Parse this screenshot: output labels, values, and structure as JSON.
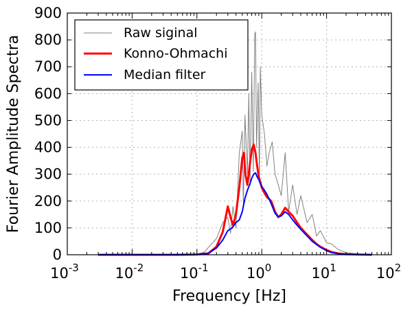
{
  "chart_data": {
    "type": "line",
    "xlabel": "Frequency [Hz]",
    "ylabel": "Fourier Amplitude Spectra",
    "x_scale": "log",
    "xlim": [
      0.001,
      100
    ],
    "ylim": [
      0,
      900
    ],
    "x_ticks": [
      {
        "base": "10",
        "exp": "-3"
      },
      {
        "base": "10",
        "exp": "-2"
      },
      {
        "base": "10",
        "exp": "-1"
      },
      {
        "base": "10",
        "exp": "0"
      },
      {
        "base": "10",
        "exp": "1"
      },
      {
        "base": "10",
        "exp": "2"
      }
    ],
    "y_ticks": [
      "0",
      "100",
      "200",
      "300",
      "400",
      "500",
      "600",
      "700",
      "800",
      "900"
    ],
    "grid": true,
    "legend_position": "top-left",
    "series": [
      {
        "name": "Raw siginal",
        "color": "#808080",
        "x": [
          0.003,
          0.01,
          0.05,
          0.1,
          0.13,
          0.16,
          0.2,
          0.25,
          0.3,
          0.33,
          0.36,
          0.4,
          0.45,
          0.5,
          0.52,
          0.55,
          0.6,
          0.63,
          0.66,
          0.7,
          0.74,
          0.78,
          0.8,
          0.83,
          0.88,
          0.92,
          0.95,
          1.0,
          1.1,
          1.2,
          1.3,
          1.45,
          1.6,
          1.8,
          2.0,
          2.3,
          2.6,
          3.0,
          3.5,
          4.0,
          5.0,
          6.0,
          7.0,
          8.0,
          10.0,
          12.0,
          15.0,
          20.0,
          30.0,
          50.0
        ],
        "y": [
          0,
          0,
          0,
          2,
          10,
          35,
          60,
          120,
          140,
          80,
          180,
          100,
          380,
          460,
          180,
          520,
          300,
          600,
          260,
          680,
          310,
          820,
          830,
          400,
          640,
          280,
          700,
          520,
          450,
          330,
          380,
          420,
          300,
          260,
          220,
          380,
          160,
          260,
          150,
          220,
          120,
          150,
          70,
          90,
          45,
          40,
          20,
          8,
          3,
          0
        ]
      },
      {
        "name": "Konno-Ohmachi",
        "color": "#ff0000",
        "x": [
          0.003,
          0.01,
          0.05,
          0.1,
          0.15,
          0.2,
          0.25,
          0.3,
          0.33,
          0.36,
          0.4,
          0.45,
          0.5,
          0.53,
          0.56,
          0.6,
          0.65,
          0.7,
          0.75,
          0.8,
          0.85,
          0.9,
          0.95,
          1.0,
          1.1,
          1.2,
          1.4,
          1.6,
          1.8,
          2.0,
          2.3,
          2.6,
          3.0,
          3.5,
          4.0,
          5.0,
          6.0,
          7.0,
          8.0,
          10.0,
          12.0,
          15.0,
          20.0,
          30.0,
          50.0
        ],
        "y": [
          0,
          0,
          0,
          1,
          5,
          30,
          85,
          180,
          140,
          110,
          150,
          250,
          360,
          380,
          300,
          260,
          330,
          390,
          410,
          380,
          330,
          290,
          270,
          250,
          230,
          215,
          200,
          160,
          140,
          150,
          175,
          160,
          145,
          120,
          100,
          75,
          55,
          40,
          30,
          18,
          10,
          5,
          2,
          1,
          0
        ]
      },
      {
        "name": "Median filter",
        "color": "#0000ff",
        "x": [
          0.003,
          0.01,
          0.05,
          0.1,
          0.15,
          0.2,
          0.25,
          0.3,
          0.35,
          0.4,
          0.45,
          0.5,
          0.55,
          0.6,
          0.65,
          0.7,
          0.75,
          0.8,
          0.85,
          0.9,
          0.95,
          1.0,
          1.1,
          1.2,
          1.4,
          1.6,
          1.8,
          2.0,
          2.3,
          2.6,
          3.0,
          3.5,
          4.0,
          5.0,
          6.0,
          7.0,
          8.0,
          10.0,
          12.0,
          15.0,
          20.0,
          30.0,
          50.0
        ],
        "y": [
          0,
          0,
          0,
          1,
          5,
          25,
          55,
          90,
          100,
          120,
          130,
          160,
          210,
          240,
          260,
          285,
          300,
          305,
          290,
          280,
          265,
          255,
          240,
          225,
          190,
          155,
          140,
          145,
          160,
          150,
          130,
          110,
          95,
          70,
          50,
          38,
          28,
          15,
          8,
          4,
          2,
          1,
          0
        ]
      }
    ]
  }
}
